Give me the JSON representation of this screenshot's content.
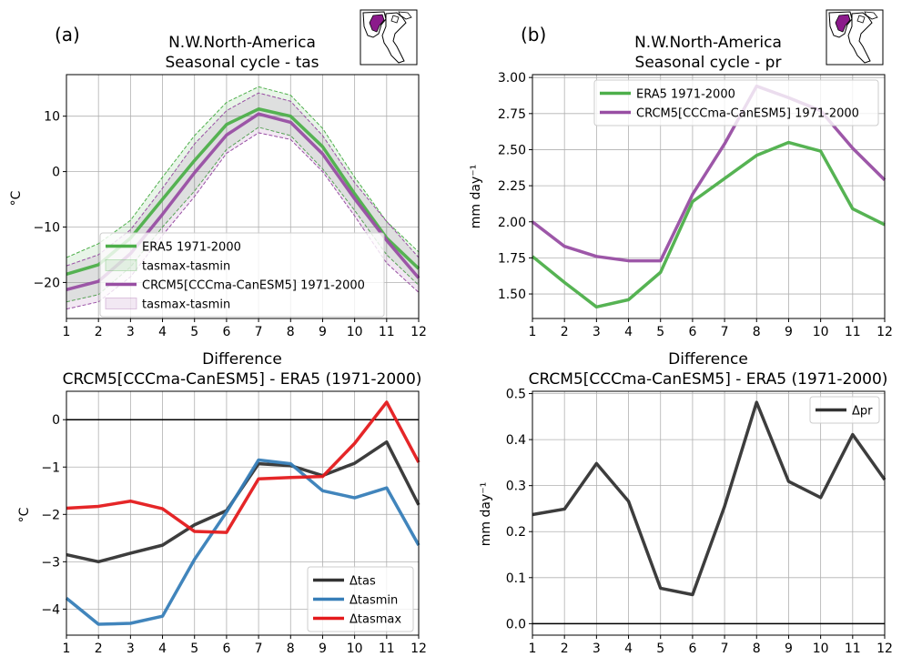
{
  "panel_labels": [
    "(a)",
    "(b)"
  ],
  "chart_data": [
    {
      "type": "line",
      "title": "N.W.North-America",
      "subtitle": "Seasonal cycle - tas",
      "xlabel": "",
      "ylabel": "°C",
      "x": [
        1,
        2,
        3,
        4,
        5,
        6,
        7,
        8,
        9,
        10,
        11,
        12
      ],
      "xlim": [
        1,
        12
      ],
      "ylim": [
        -26.5,
        17.5
      ],
      "yticks": [
        -20,
        -10,
        0,
        10
      ],
      "grid": true,
      "legend_position": "lower-center",
      "series": [
        {
          "name": "ERA5 1971-2000",
          "color": "#4daf4a",
          "values": [
            -18.5,
            -16.8,
            -12.0,
            -5.0,
            2.0,
            8.5,
            11.3,
            10.0,
            4.5,
            -4.0,
            -12.0,
            -17.5
          ]
        },
        {
          "name": "CRCM5[CCCma-CanESM5] 1971-2000",
          "color": "#984ea3",
          "values": [
            -21.3,
            -19.8,
            -14.8,
            -7.7,
            -0.2,
            6.6,
            10.4,
            8.9,
            3.2,
            -4.9,
            -12.4,
            -19.2
          ]
        }
      ],
      "bands": [
        {
          "name": "tasmax-tasmin",
          "color": "#4daf4a",
          "lower": [
            -23.5,
            -22.2,
            -17.2,
            -10.0,
            -3.5,
            4.0,
            8.0,
            6.5,
            0.5,
            -7.0,
            -15.0,
            -20.5
          ],
          "upper": [
            -15.5,
            -13.0,
            -8.8,
            -1.0,
            6.5,
            12.5,
            15.3,
            13.8,
            7.8,
            -1.0,
            -9.0,
            -14.5
          ]
        },
        {
          "name": "tasmax-tasmin",
          "color": "#984ea3",
          "lower": [
            -24.8,
            -23.5,
            -19.0,
            -11.5,
            -4.5,
            3.3,
            7.0,
            5.8,
            0.0,
            -8.0,
            -16.5,
            -21.8
          ],
          "upper": [
            -17.0,
            -15.0,
            -10.5,
            -3.0,
            5.0,
            11.0,
            14.2,
            12.7,
            6.5,
            -2.0,
            -9.0,
            -15.5
          ]
        }
      ]
    },
    {
      "type": "line",
      "title": "N.W.North-America",
      "subtitle": "Seasonal cycle - pr",
      "xlabel": "",
      "ylabel": "mm day⁻¹",
      "x": [
        1,
        2,
        3,
        4,
        5,
        6,
        7,
        8,
        9,
        10,
        11,
        12
      ],
      "xlim": [
        1,
        12
      ],
      "ylim": [
        1.33,
        3.02
      ],
      "yticks": [
        1.5,
        1.75,
        2.0,
        2.25,
        2.5,
        2.75,
        3.0
      ],
      "ytick_labels": [
        "1.50",
        "1.75",
        "2.00",
        "2.25",
        "2.50",
        "2.75",
        "3.00"
      ],
      "grid": true,
      "legend_position": "top-right",
      "series": [
        {
          "name": "ERA5 1971-2000",
          "color": "#4daf4a",
          "values": [
            1.76,
            1.58,
            1.41,
            1.46,
            1.65,
            2.14,
            2.3,
            2.46,
            2.55,
            2.49,
            2.09,
            1.98
          ]
        },
        {
          "name": "CRCM5[CCCma-CanESM5] 1971-2000",
          "color": "#984ea3",
          "values": [
            2.0,
            1.83,
            1.76,
            1.73,
            1.73,
            2.19,
            2.54,
            2.94,
            2.86,
            2.77,
            2.51,
            2.29
          ]
        }
      ]
    },
    {
      "type": "line",
      "title": "Difference",
      "subtitle": "CRCM5[CCCma-CanESM5] - ERA5 (1971-2000)",
      "xlabel": "",
      "ylabel": "°C",
      "x": [
        1,
        2,
        3,
        4,
        5,
        6,
        7,
        8,
        9,
        10,
        11,
        12
      ],
      "xlim": [
        1,
        12
      ],
      "ylim": [
        -4.55,
        0.6
      ],
      "yticks": [
        -4,
        -3,
        -2,
        -1,
        0
      ],
      "ytick_labels": [
        "−4",
        "−3",
        "−2",
        "−1",
        "0"
      ],
      "grid": true,
      "zero_line": true,
      "legend_position": "lower-right",
      "series": [
        {
          "name": "Δtas",
          "color": "#333333",
          "values": [
            -2.85,
            -3.0,
            -2.82,
            -2.65,
            -2.22,
            -1.92,
            -0.93,
            -0.97,
            -1.18,
            -0.92,
            -0.47,
            -1.8
          ]
        },
        {
          "name": "Δtasmin",
          "color": "#377eb8",
          "values": [
            -3.77,
            -4.32,
            -4.3,
            -4.15,
            -2.95,
            -1.95,
            -0.85,
            -0.93,
            -1.5,
            -1.65,
            -1.44,
            -2.65
          ]
        },
        {
          "name": "Δtasmax",
          "color": "#e41a1c",
          "values": [
            -1.87,
            -1.83,
            -1.72,
            -1.88,
            -2.36,
            -2.38,
            -1.25,
            -1.22,
            -1.2,
            -0.5,
            0.37,
            -0.9
          ]
        }
      ]
    },
    {
      "type": "line",
      "title": "Difference",
      "subtitle": "CRCM5[CCCma-CanESM5] - ERA5 (1971-2000)",
      "xlabel": "",
      "ylabel": "mm day⁻¹",
      "x": [
        1,
        2,
        3,
        4,
        5,
        6,
        7,
        8,
        9,
        10,
        11,
        12
      ],
      "xlim": [
        1,
        12
      ],
      "ylim": [
        -0.025,
        0.505
      ],
      "yticks": [
        0.0,
        0.1,
        0.2,
        0.3,
        0.4,
        0.5
      ],
      "ytick_labels": [
        "0.0",
        "0.1",
        "0.2",
        "0.3",
        "0.4",
        "0.5"
      ],
      "grid": true,
      "zero_line": true,
      "legend_position": "top-right",
      "series": [
        {
          "name": "Δpr",
          "color": "#333333",
          "values": [
            0.237,
            0.249,
            0.348,
            0.266,
            0.077,
            0.063,
            0.255,
            0.481,
            0.309,
            0.274,
            0.411,
            0.313
          ]
        }
      ]
    }
  ]
}
